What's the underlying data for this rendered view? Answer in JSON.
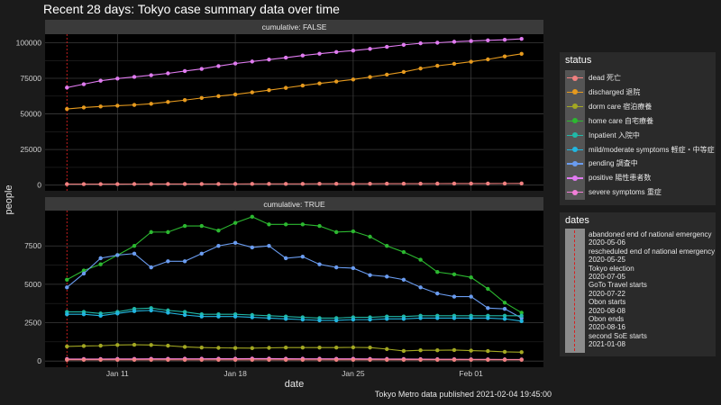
{
  "title": "Recent 28 days: Tokyo case summary data over time",
  "caption": "Tokyo Metro data published 2021-02-04 19:45:00",
  "chart_data": {
    "type": "line",
    "x": [
      "2021-01-08",
      "2021-01-09",
      "2021-01-10",
      "2021-01-11",
      "2021-01-12",
      "2021-01-13",
      "2021-01-14",
      "2021-01-15",
      "2021-01-16",
      "2021-01-17",
      "2021-01-18",
      "2021-01-19",
      "2021-01-20",
      "2021-01-21",
      "2021-01-22",
      "2021-01-23",
      "2021-01-24",
      "2021-01-25",
      "2021-01-26",
      "2021-01-27",
      "2021-01-28",
      "2021-01-29",
      "2021-01-30",
      "2021-01-31",
      "2021-02-01",
      "2021-02-02",
      "2021-02-03",
      "2021-02-04"
    ],
    "xlabel": "date",
    "ylabel": "people",
    "x_ticks": [
      "Jan 11",
      "Jan 18",
      "Jan 25",
      "Feb 01"
    ],
    "x_tick_dates": [
      "2021-01-11",
      "2021-01-18",
      "2021-01-25",
      "2021-02-01"
    ],
    "vline_date": "2021-01-08",
    "panels": [
      {
        "strip": "cumulative: FALSE",
        "ylim": [
          -4000,
          106000
        ],
        "y_ticks": [
          0,
          25000,
          50000,
          75000,
          100000
        ],
        "series": [
          {
            "name": "positive 陽性患者数",
            "color": "#e07bf0",
            "values": [
              68500,
              70900,
              73300,
              74800,
              76000,
              77200,
              78500,
              80100,
              81600,
              83600,
              85400,
              86800,
              88200,
              89500,
              91000,
              92300,
              93500,
              94500,
              95700,
              97100,
              98500,
              99600,
              100000,
              100700,
              101200,
              101700,
              102100,
              102700
            ]
          },
          {
            "name": "discharged 退院",
            "color": "#e69a1e",
            "values": [
              53500,
              54500,
              55200,
              55800,
              56300,
              57100,
              58400,
              59700,
              61200,
              62500,
              63700,
              65200,
              66700,
              68300,
              69900,
              71400,
              72800,
              74200,
              75900,
              77600,
              79500,
              81900,
              83800,
              85200,
              86700,
              88300,
              90400,
              92200
            ]
          },
          {
            "name": "dead 死亡",
            "color": "#f08080",
            "values": [
              700,
              710,
              720,
              730,
              740,
              760,
              780,
              790,
              800,
              810,
              820,
              830,
              850,
              870,
              890,
              910,
              930,
              950,
              970,
              990,
              1010,
              1030,
              1050,
              1070,
              1090,
              1110,
              1130,
              1150
            ]
          }
        ]
      },
      {
        "strip": "cumulative: TRUE",
        "ylim": [
          -400,
          9800
        ],
        "y_ticks": [
          0,
          2500,
          5000,
          7500
        ],
        "series": [
          {
            "name": "home care 自宅療養",
            "color": "#2cb830",
            "values": [
              5300,
              5900,
              6300,
              6900,
              7500,
              8400,
              8400,
              8800,
              8800,
              8500,
              9000,
              9400,
              8900,
              8900,
              8900,
              8800,
              8400,
              8450,
              8100,
              7500,
              7100,
              6600,
              5800,
              5650,
              5450,
              4700,
              3800,
              3150
            ]
          },
          {
            "name": "pending 調査中",
            "color": "#6a9cf0",
            "values": [
              4800,
              5700,
              6700,
              6900,
              7000,
              6100,
              6500,
              6500,
              7000,
              7500,
              7700,
              7400,
              7500,
              6700,
              6800,
              6300,
              6100,
              6050,
              5600,
              5500,
              5300,
              4800,
              4400,
              4200,
              4200,
              3450,
              3400,
              2800
            ]
          },
          {
            "name": "Inpatient 入院中",
            "color": "#20b9a8",
            "values": [
              3200,
              3200,
              3100,
              3200,
              3400,
              3450,
              3300,
              3200,
              3050,
              3050,
              3050,
              3000,
              2950,
              2900,
              2850,
              2800,
              2800,
              2850,
              2850,
              2900,
              2900,
              2950,
              2950,
              2950,
              2950,
              2950,
              2950,
              2950
            ]
          },
          {
            "name": "mild/moderate symptoms 軽症・中等症",
            "color": "#22b6e0",
            "values": [
              3050,
              3050,
              2950,
              3100,
              3250,
              3300,
              3150,
              3000,
              2900,
              2900,
              2900,
              2850,
              2800,
              2750,
              2700,
              2650,
              2650,
              2700,
              2700,
              2750,
              2750,
              2800,
              2800,
              2800,
              2800,
              2800,
              2750,
              2600
            ]
          },
          {
            "name": "dorm care 宿泊療養",
            "color": "#a3a822",
            "values": [
              950,
              980,
              1000,
              1050,
              1060,
              1050,
              1000,
              920,
              880,
              860,
              850,
              840,
              860,
              880,
              880,
              880,
              880,
              890,
              880,
              780,
              660,
              700,
              700,
              720,
              680,
              650,
              600,
              580
            ]
          },
          {
            "name": "severe symptoms 重症",
            "color": "#f27fd8",
            "values": [
              130,
              130,
              130,
              140,
              140,
              145,
              145,
              150,
              150,
              155,
              155,
              160,
              160,
              155,
              150,
              150,
              148,
              145,
              140,
              135,
              130,
              125,
              120,
              115,
              110,
              108,
              105,
              100
            ]
          },
          {
            "name": "dead 死亡",
            "color": "#f08080",
            "values": [
              80,
              80,
              80,
              80,
              80,
              80,
              80,
              80,
              80,
              80,
              80,
              80,
              80,
              80,
              80,
              80,
              80,
              80,
              80,
              80,
              80,
              80,
              80,
              80,
              80,
              80,
              80,
              80
            ]
          }
        ]
      }
    ]
  },
  "legend_status": {
    "title": "status",
    "items": [
      {
        "label": "dead 死亡",
        "color": "#f08080"
      },
      {
        "label": "discharged 退院",
        "color": "#e69a1e"
      },
      {
        "label": "dorm care 宿泊療養",
        "color": "#a3a822"
      },
      {
        "label": "home care 自宅療養",
        "color": "#2cb830"
      },
      {
        "label": "Inpatient 入院中",
        "color": "#20b9a8"
      },
      {
        "label": "mild/moderate symptoms 軽症・中等症",
        "color": "#22b6e0"
      },
      {
        "label": "pending 調査中",
        "color": "#6a9cf0"
      },
      {
        "label": "positive 陽性患者数",
        "color": "#e07bf0"
      },
      {
        "label": "severe symptoms 重症",
        "color": "#f27fd8"
      }
    ]
  },
  "legend_dates": {
    "title": "dates",
    "lines": [
      "abandoned end of national emergency",
      "2020-05-06",
      "rescheduled end of national emergency",
      "2020-05-25",
      "Tokyo election",
      "2020-07-05",
      "GoTo Travel starts",
      "2020-07-22",
      "Obon starts",
      "2020-08-08",
      "Obon ends",
      "2020-08-16",
      "second SoE starts",
      "2021-01-08"
    ]
  },
  "colors": {
    "panel_bg": "#000000",
    "grid": "#3c3c3c",
    "strip_bg": "#3a3a3a",
    "vline": "#d62020"
  }
}
